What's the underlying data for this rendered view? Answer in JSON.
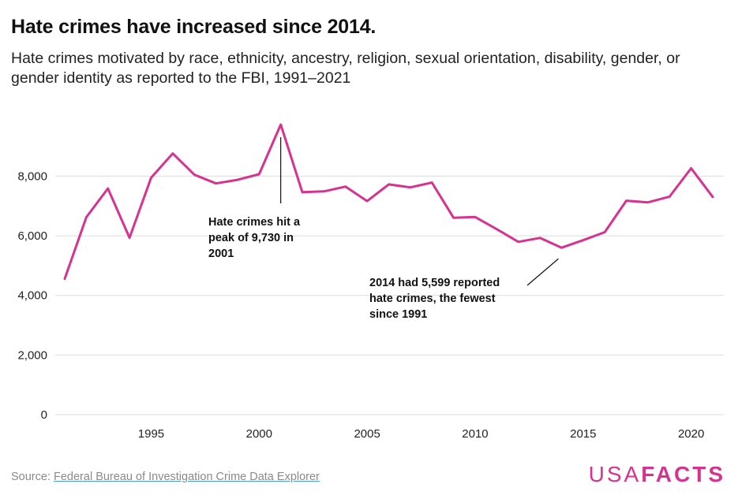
{
  "title": "Hate crimes have increased since 2014.",
  "subtitle": "Hate crimes motivated by race, ethnicity, ancestry, religion, sexual orientation, disability, gender, or gender identity as reported to the FBI, 1991–2021",
  "source_prefix": "Source: ",
  "source_link": "Federal Bureau of Investigation Crime Data Explorer",
  "logo": {
    "part1": "USA",
    "part2": "FACTS"
  },
  "colors": {
    "line": "#d6338f",
    "grid": "#dddddd",
    "leader": "#111111"
  },
  "chart_data": {
    "type": "line",
    "title": "Hate crimes have increased since 2014.",
    "xlabel": "",
    "ylabel": "",
    "xlim": [
      1991,
      2021
    ],
    "ylim": [
      0,
      9730
    ],
    "grid": true,
    "x": [
      1991,
      1992,
      1993,
      1994,
      1995,
      1996,
      1997,
      1998,
      1999,
      2000,
      2001,
      2002,
      2003,
      2004,
      2005,
      2006,
      2007,
      2008,
      2009,
      2010,
      2011,
      2012,
      2013,
      2014,
      2015,
      2016,
      2017,
      2018,
      2019,
      2020,
      2021
    ],
    "series": [
      {
        "name": "Hate crimes",
        "values": [
          4558,
          6623,
          7587,
          5932,
          7947,
          8759,
          8049,
          7755,
          7876,
          8063,
          9730,
          7462,
          7489,
          7649,
          7163,
          7722,
          7624,
          7783,
          6604,
          6628,
          6222,
          5796,
          5928,
          5599,
          5850,
          6121,
          7175,
          7120,
          7314,
          8263,
          7303
        ]
      }
    ],
    "y_ticks": [
      {
        "value": 0,
        "label": "0"
      },
      {
        "value": 2000,
        "label": "2,000"
      },
      {
        "value": 4000,
        "label": "4,000"
      },
      {
        "value": 6000,
        "label": "6,000"
      },
      {
        "value": 8000,
        "label": "8,000"
      }
    ],
    "x_ticks": [
      {
        "value": 1995,
        "label": "1995"
      },
      {
        "value": 2000,
        "label": "2000"
      },
      {
        "value": 2005,
        "label": "2005"
      },
      {
        "value": 2010,
        "label": "2010"
      },
      {
        "value": 2015,
        "label": "2015"
      },
      {
        "value": 2020,
        "label": "2020"
      }
    ],
    "annotations": [
      {
        "year": 2001,
        "lines": [
          "Hate crimes hit a",
          "peak of 9,730 in",
          "2001"
        ]
      },
      {
        "year": 2014,
        "lines": [
          "2014 had 5,599 reported",
          "hate crimes, the fewest",
          "since 1991"
        ]
      }
    ]
  }
}
